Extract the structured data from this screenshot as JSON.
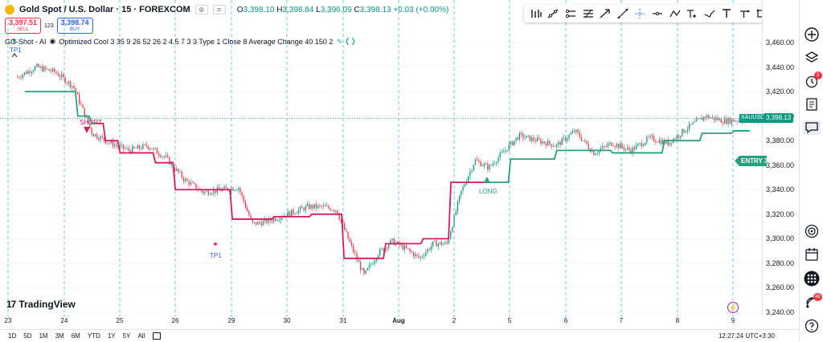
{
  "header": {
    "symbol_title": "Gold Spot / U.S. Dollar · 15 · FOREXCOM",
    "ohlc": {
      "o_label": "O",
      "o": "3,398.10",
      "h_label": "H",
      "h": "3,398.84",
      "l_label": "L",
      "l": "3,396.09",
      "c_label": "C",
      "c": "3,398.13",
      "change": "+0.03 (+0.00%)"
    },
    "hdr_btn1": "⊕",
    "hdr_btn2": "≡"
  },
  "trade": {
    "sell_price": "3,397.51",
    "sell_label": "SELL",
    "spread": "123",
    "buy_price": "3,398.74",
    "buy_label": "BUY"
  },
  "indicator": {
    "text": "GG-Shot - AI",
    "settings": "Optimized Cool 3 35 9 26 52 26 2 4.5 7 3 3 Type 1 Close 8 Average Change 40 150 2",
    "icons": "∿ ❬❭"
  },
  "price_scale": {
    "ticks": [
      "3,460.00",
      "3,440.00",
      "3,420.00",
      "3,400.00",
      "3,380.00",
      "3,360.00",
      "3,340.00",
      "3,320.00",
      "3,300.00",
      "3,280.00",
      "3,260.00",
      "3,240.00"
    ],
    "last_price_symbol": "XAUUSD",
    "last_price": "3,398.13",
    "entry_label": "ENTRY 3"
  },
  "time_axis": {
    "labels": [
      "23",
      "24",
      "25",
      "26",
      "29",
      "30",
      "31",
      "Aug",
      "2",
      "5",
      "6",
      "7",
      "8",
      "9"
    ],
    "bold": [
      "Aug"
    ]
  },
  "signals": {
    "tp_top": "TP1",
    "short": "SHORT",
    "tp1": "TP1",
    "long": "LONG"
  },
  "bottom_bar": {
    "ranges": [
      "1D",
      "5D",
      "1M",
      "3M",
      "6M",
      "YTD",
      "1Y",
      "5Y",
      "All"
    ],
    "clock": "12:27:24 UTC+3:30"
  },
  "branding": {
    "logo_text": "TradingView",
    "logo_mark": "17"
  },
  "right_sidebar": {
    "alert_badge": "2",
    "notif_badge": "49"
  },
  "colors": {
    "up": "#089981",
    "down": "#f23645",
    "trend_bull": "#26a17b",
    "trend_bear": "#d81b60",
    "accent": "#2962ff"
  },
  "chart_data": {
    "type": "candlestick",
    "symbol": "XAUUSD",
    "timeframe": "15",
    "ylim": [
      3240,
      3470
    ],
    "x": [
      "23",
      "24",
      "25",
      "26",
      "29",
      "30",
      "31",
      "Aug",
      "2",
      "5",
      "6",
      "7",
      "8",
      "9"
    ],
    "close_path": [
      [
        "23",
        3432
      ],
      [
        "23",
        3440
      ],
      [
        "23",
        3436
      ],
      [
        "24",
        3424
      ],
      [
        "24",
        3386
      ],
      [
        "24",
        3378
      ],
      [
        "25",
        3372
      ],
      [
        "25",
        3376
      ],
      [
        "25",
        3366
      ],
      [
        "26",
        3348
      ],
      [
        "26",
        3338
      ],
      [
        "26",
        3340
      ],
      [
        "29",
        3342
      ],
      [
        "29",
        3312
      ],
      [
        "29",
        3314
      ],
      [
        "29",
        3318
      ],
      [
        "30",
        3322
      ],
      [
        "30",
        3326
      ],
      [
        "30",
        3326
      ],
      [
        "30",
        3324
      ],
      [
        "31",
        3296
      ],
      [
        "31",
        3270
      ],
      [
        "31",
        3288
      ],
      [
        "31",
        3298
      ],
      [
        "Aug",
        3292
      ],
      [
        "Aug",
        3284
      ],
      [
        "Aug",
        3296
      ],
      [
        "Aug",
        3296
      ],
      [
        "2",
        3338
      ],
      [
        "2",
        3364
      ],
      [
        "2",
        3358
      ],
      [
        "2",
        3370
      ],
      [
        "5",
        3384
      ],
      [
        "5",
        3380
      ],
      [
        "5",
        3376
      ],
      [
        "6",
        3388
      ],
      [
        "6",
        3370
      ],
      [
        "6",
        3378
      ],
      [
        "7",
        3372
      ],
      [
        "7",
        3382
      ],
      [
        "7",
        3378
      ],
      [
        "8",
        3390
      ],
      [
        "8",
        3400
      ],
      [
        "8",
        3396
      ],
      [
        "9",
        3398
      ]
    ],
    "trend_line": [
      [
        "23",
        3420
      ],
      [
        "24",
        3420
      ],
      [
        "24",
        3400
      ],
      [
        "24",
        3394
      ],
      [
        "24",
        3380
      ],
      [
        "25",
        3370
      ],
      [
        "25",
        3370
      ],
      [
        "25",
        3362
      ],
      [
        "26",
        3340
      ],
      [
        "26",
        3340
      ],
      [
        "29",
        3316
      ],
      [
        "30",
        3318
      ],
      [
        "30",
        3320
      ],
      [
        "31",
        3284
      ],
      [
        "Aug",
        3296
      ],
      [
        "Aug",
        3300
      ],
      [
        "2",
        3346
      ],
      [
        "2",
        3346
      ],
      [
        "5",
        3365
      ],
      [
        "6",
        3372
      ],
      [
        "7",
        3370
      ],
      [
        "8",
        3380
      ],
      [
        "8",
        3386
      ],
      [
        "9",
        3388
      ]
    ],
    "signals": [
      {
        "type": "TP1",
        "x": "23",
        "price": 3462
      },
      {
        "type": "SHORT",
        "x": "24",
        "price": 3390
      },
      {
        "type": "TP1",
        "x": "29",
        "price": 3296
      },
      {
        "type": "LONG",
        "x": "5",
        "price": 3348
      }
    ],
    "last_price": 3398.13
  }
}
